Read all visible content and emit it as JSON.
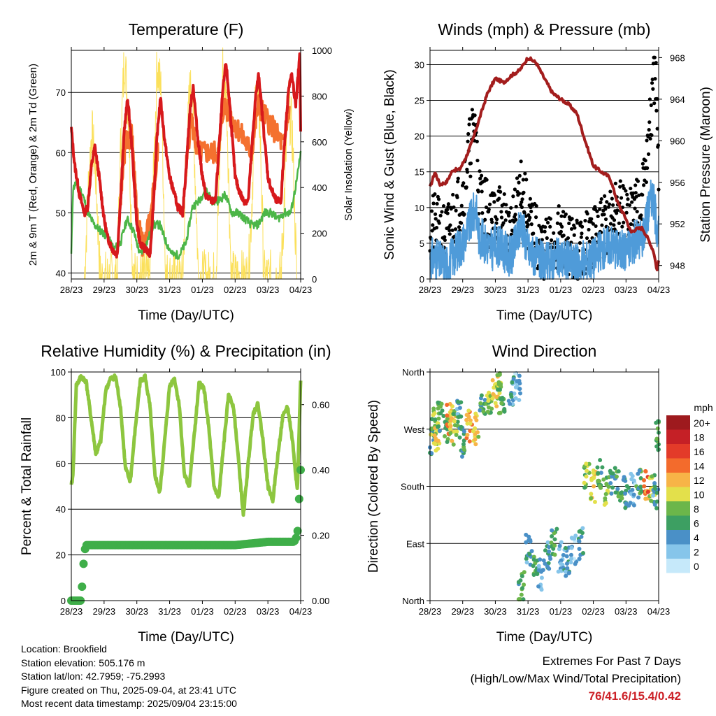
{
  "info": {
    "location": "Location: Brookfield",
    "elevation": "Station elevation: 505.176 m",
    "latlon": "Station lat/lon: 42.7959; -75.2993",
    "created": "Figure created on Thu, 2025-09-04, at 23:41 UTC",
    "recent": "Most recent data timestamp: 2025/09/04 23:15:00"
  },
  "extremes": {
    "title": "Extremes For Past 7 Days",
    "subtitle": "(High/Low/Max Wind/Total Precipitation)",
    "values": "76/41.6/15.4/0.42"
  },
  "chart_data": [
    {
      "type": "line",
      "title": "Temperature (F)",
      "xlabel": "Time (Day/UTC)",
      "ylabel": "2m & 9m T (Red, Orange) & 2m Td (Green)",
      "y2label": "Solar Insolation (Yellow)",
      "xticks": [
        "28/23",
        "29/23",
        "30/23",
        "31/23",
        "01/23",
        "02/23",
        "03/23",
        "04/23"
      ],
      "ylim": [
        39,
        77
      ],
      "yticks": [
        40,
        50,
        60,
        70
      ],
      "y2lim": [
        0,
        1000
      ],
      "y2ticks": [
        0,
        200,
        400,
        600,
        800,
        1000
      ],
      "grid": true,
      "colors": {
        "temp2m": "#d7191c",
        "temp9m": "#f4712f",
        "dewpoint": "#4cb648",
        "solar": "#fbe05b"
      },
      "series": [
        {
          "name": "2m T",
          "x": [
            0,
            0.1,
            0.25,
            0.4,
            0.5,
            0.62,
            0.72,
            0.85,
            1.0,
            1.1,
            1.25,
            1.4,
            1.5,
            1.62,
            1.72,
            1.85,
            2.0,
            2.1,
            2.25,
            2.4,
            2.5,
            2.62,
            2.72,
            2.85,
            3.0,
            3.1,
            3.25,
            3.4,
            3.5,
            3.62,
            3.72,
            3.85,
            4.0,
            4.1,
            4.25,
            4.4,
            4.5,
            4.62,
            4.72,
            4.85,
            5.0,
            5.1,
            5.25,
            5.4,
            5.5,
            5.62,
            5.72,
            5.85,
            6.0,
            6.1,
            6.25,
            6.4,
            6.5,
            6.62,
            6.72,
            6.85,
            6.97,
            7.0
          ],
          "y": [
            64,
            58,
            53,
            50,
            51,
            58,
            61,
            56,
            49,
            46,
            44,
            43,
            52,
            64,
            69,
            61,
            48,
            45,
            44,
            43,
            51,
            63,
            69,
            62,
            56,
            54,
            51,
            50,
            57,
            67,
            71,
            63,
            56,
            53,
            52,
            52,
            60,
            70,
            75,
            67,
            56,
            54,
            52,
            52,
            60,
            69,
            73,
            65,
            56,
            54,
            52,
            52,
            61,
            70,
            73,
            68,
            76,
            64
          ]
        },
        {
          "name": "9m T",
          "x": [
            1.5,
            1.65,
            1.85,
            2.0,
            2.2,
            2.45,
            2.65,
            3.5,
            3.65,
            3.85,
            4.5,
            4.65,
            5.5,
            5.7,
            6.5,
            6.65
          ],
          "y": [
            52,
            62,
            63,
            49,
            44,
            50,
            62,
            57,
            66,
            60,
            60,
            68,
            60,
            68,
            61,
            68
          ]
        },
        {
          "name": "2m Td",
          "x": [
            0,
            0.05,
            0.15,
            0.35,
            0.5,
            0.7,
            0.9,
            1.1,
            1.3,
            1.5,
            1.7,
            1.9,
            2.1,
            2.3,
            2.5,
            2.7,
            2.9,
            3.1,
            3.3,
            3.5,
            3.7,
            3.9,
            4.1,
            4.3,
            4.5,
            4.7,
            4.9,
            5.1,
            5.3,
            5.5,
            5.7,
            5.9,
            6.1,
            6.3,
            6.5,
            6.7,
            6.9,
            7.0
          ],
          "y": [
            43,
            54,
            55,
            53,
            50,
            48,
            47,
            46,
            44,
            45,
            49,
            47,
            43,
            45,
            48,
            48,
            45,
            43,
            43,
            45,
            51,
            52,
            54,
            52,
            52,
            53,
            50,
            50,
            49,
            48,
            48,
            50,
            50,
            49,
            50,
            50,
            56,
            60
          ]
        },
        {
          "name": "Solar",
          "x": [
            0.4,
            0.5,
            0.62,
            0.75,
            0.88,
            1.4,
            1.5,
            1.62,
            1.75,
            1.88,
            2.4,
            2.5,
            2.62,
            2.75,
            2.88,
            3.4,
            3.5,
            3.62,
            3.75,
            3.88,
            4.4,
            4.5,
            4.62,
            4.75,
            4.88,
            5.4,
            5.5,
            5.62,
            5.75,
            5.88,
            6.4,
            6.5,
            6.62,
            6.75,
            6.88
          ],
          "y": [
            0,
            350,
            650,
            450,
            0,
            0,
            550,
            980,
            700,
            0,
            0,
            400,
            950,
            800,
            0,
            0,
            450,
            850,
            600,
            0,
            0,
            350,
            920,
            750,
            0,
            0,
            300,
            800,
            700,
            0,
            0,
            350,
            780,
            620,
            0
          ]
        }
      ]
    },
    {
      "type": "scatter",
      "title": "Winds (mph) & Pressure (mb)",
      "xlabel": "Time (Day/UTC)",
      "ylabel": "Sonic Wind & Gust (Blue, Black)",
      "y2label": "Station Pressure (Maroon)",
      "xticks": [
        "28/23",
        "29/23",
        "30/23",
        "31/23",
        "01/23",
        "02/23",
        "03/23",
        "04/23"
      ],
      "ylim": [
        0,
        32
      ],
      "yticks": [
        0,
        5,
        10,
        15,
        20,
        25,
        30
      ],
      "y2lim": [
        946.7,
        968.7
      ],
      "y2ticks": [
        948,
        952,
        956,
        960,
        964,
        968
      ],
      "grid": true,
      "colors": {
        "wind": "#4f9bd9",
        "gust": "#000000",
        "pressure": "#a31d1d"
      },
      "series": [
        {
          "name": "Wind",
          "x": [
            0,
            0.5,
            1,
            1.4,
            1.5,
            1.9,
            2,
            2.5,
            2.8,
            3,
            3.5,
            4,
            4.5,
            5,
            5.5,
            5.8,
            6,
            6.2,
            6.5,
            6.8,
            7
          ],
          "y": [
            3,
            2,
            5,
            10,
            6,
            4,
            5,
            3,
            8,
            4,
            2,
            3,
            2,
            3,
            5,
            4,
            4,
            5,
            6,
            12,
            6
          ]
        },
        {
          "name": "Gust",
          "x": [
            0,
            0.5,
            1,
            1.2,
            1.4,
            1.5,
            1.9,
            2,
            2.5,
            2.8,
            3,
            3.5,
            4,
            4.5,
            5,
            5.5,
            5.8,
            6,
            6.2,
            6.5,
            6.8,
            6.9,
            7
          ],
          "y": [
            8,
            6,
            12,
            18,
            22,
            12,
            8,
            10,
            6,
            14,
            8,
            4,
            6,
            4,
            6,
            8,
            10,
            8,
            10,
            12,
            24,
            30,
            12
          ]
        },
        {
          "name": "Pressure",
          "x": [
            0,
            0.15,
            0.3,
            0.5,
            0.7,
            0.9,
            1.1,
            1.3,
            1.5,
            1.75,
            2.0,
            2.25,
            2.5,
            2.75,
            3.0,
            3.25,
            3.5,
            3.75,
            4.0,
            4.25,
            4.5,
            4.75,
            5.0,
            5.25,
            5.5,
            5.75,
            6.0,
            6.15,
            6.3,
            6.5,
            6.7,
            6.85,
            6.95,
            7.0
          ],
          "y": [
            955.5,
            957,
            955.8,
            956,
            957.2,
            957.2,
            958.4,
            960,
            962,
            964.5,
            966,
            965.6,
            966.3,
            966.8,
            968,
            967.5,
            966,
            964.6,
            964,
            963.5,
            962.6,
            960,
            957.6,
            957,
            956.5,
            954,
            952.5,
            951.2,
            951.5,
            951.6,
            950.4,
            949.3,
            947.5,
            948.5
          ]
        }
      ]
    },
    {
      "type": "line",
      "title": "Relative Humidity (%) & Precipitation (in)",
      "xlabel": "Time (Day/UTC)",
      "ylabel": "Percent & Total Rainfall",
      "xticks": [
        "28/23",
        "29/23",
        "30/23",
        "31/23",
        "01/23",
        "02/23",
        "03/23",
        "04/23"
      ],
      "ylim": [
        0,
        100
      ],
      "yticks": [
        0,
        20,
        40,
        60,
        80,
        100
      ],
      "y2lim": [
        0,
        0.7
      ],
      "y2ticks": [
        "0.00",
        "0.20",
        "0.40",
        "0.60"
      ],
      "grid": true,
      "colors": {
        "rh": "#8dc63f",
        "precip": "#3fae49"
      },
      "series": [
        {
          "name": "RH",
          "x": [
            0,
            0.05,
            0.15,
            0.3,
            0.45,
            0.6,
            0.75,
            0.9,
            1.05,
            1.2,
            1.35,
            1.5,
            1.65,
            1.8,
            1.95,
            2.1,
            2.25,
            2.4,
            2.55,
            2.7,
            2.85,
            3.0,
            3.15,
            3.3,
            3.45,
            3.6,
            3.75,
            3.9,
            4.05,
            4.2,
            4.35,
            4.5,
            4.65,
            4.8,
            4.95,
            5.1,
            5.25,
            5.4,
            5.55,
            5.7,
            5.85,
            6.0,
            6.15,
            6.3,
            6.45,
            6.6,
            6.75,
            6.9,
            7.0
          ],
          "y": [
            50,
            55,
            94,
            98,
            96,
            80,
            64,
            70,
            92,
            97,
            98,
            85,
            58,
            52,
            75,
            96,
            98,
            85,
            55,
            47,
            70,
            94,
            97,
            85,
            55,
            50,
            72,
            95,
            93,
            75,
            50,
            45,
            68,
            90,
            85,
            62,
            37,
            60,
            82,
            86,
            70,
            50,
            44,
            63,
            80,
            85,
            70,
            48,
            97
          ]
        },
        {
          "name": "Precip",
          "x": [
            0,
            0.1,
            0.3,
            0.35,
            0.4,
            0.45,
            0.5,
            1.0,
            2.0,
            3.0,
            4.0,
            5.0,
            6.0,
            6.8,
            6.9,
            6.95,
            6.98,
            7.0
          ],
          "y": [
            0,
            0,
            0,
            0.08,
            0.15,
            0.17,
            0.17,
            0.17,
            0.17,
            0.17,
            0.17,
            0.17,
            0.18,
            0.18,
            0.2,
            0.3,
            0.4,
            0.4
          ]
        }
      ]
    },
    {
      "type": "scatter",
      "title": "Wind Direction",
      "xlabel": "Time (Day/UTC)",
      "ylabel": "Direction (Colored By Speed)",
      "xticks": [
        "28/23",
        "29/23",
        "30/23",
        "31/23",
        "01/23",
        "02/23",
        "03/23",
        "04/23"
      ],
      "ylim": [
        0,
        360
      ],
      "yticks": [
        "North",
        "East",
        "South",
        "West",
        "North"
      ],
      "legend": {
        "title": "mph",
        "labels": [
          "0",
          "2",
          "4",
          "6",
          "8",
          "10",
          "12",
          "14",
          "16",
          "18",
          "20+"
        ],
        "colors": [
          "#c6e9fa",
          "#86c5ea",
          "#4a90c7",
          "#3d9f62",
          "#6cb64a",
          "#e3e04b",
          "#f7b447",
          "#f36b2c",
          "#e33b29",
          "#c52026",
          "#9e1a1e"
        ]
      },
      "series": [
        {
          "name": "Direction",
          "x": [
            0.05,
            0.1,
            0.2,
            0.3,
            0.5,
            0.6,
            0.7,
            0.8,
            0.9,
            1.0,
            1.2,
            1.4,
            1.6,
            1.8,
            2.0,
            2.1,
            2.2,
            2.5,
            2.7,
            2.8,
            3.0,
            3.2,
            3.4,
            3.6,
            3.8,
            4.0,
            4.2,
            4.4,
            4.6,
            4.8,
            5.0,
            5.2,
            5.4,
            5.6,
            5.8,
            6.0,
            6.2,
            6.4,
            6.6,
            6.8,
            6.9,
            7.0
          ],
          "y": [
            250,
            280,
            260,
            290,
            270,
            285,
            275,
            270,
            290,
            250,
            275,
            270,
            300,
            320,
            330,
            340,
            320,
            330,
            340,
            20,
            80,
            60,
            40,
            70,
            90,
            70,
            60,
            80,
            90,
            200,
            180,
            200,
            170,
            190,
            180,
            170,
            175,
            185,
            180,
            175,
            170,
            260
          ],
          "speed": [
            4,
            8,
            10,
            6,
            6,
            12,
            10,
            8,
            4,
            6,
            12,
            10,
            6,
            8,
            10,
            8,
            6,
            4,
            2,
            6,
            4,
            6,
            2,
            4,
            6,
            2,
            4,
            2,
            4,
            8,
            10,
            6,
            8,
            4,
            6,
            4,
            2,
            6,
            14,
            8,
            4,
            6
          ]
        }
      ]
    }
  ]
}
